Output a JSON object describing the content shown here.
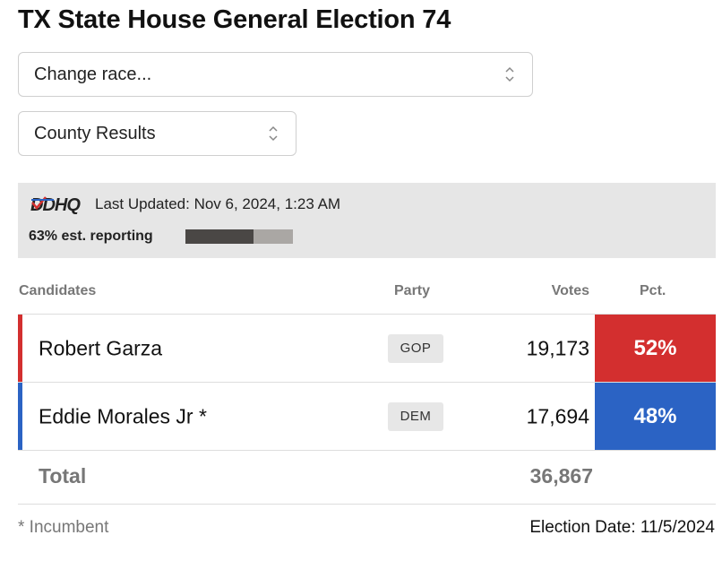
{
  "page": {
    "title": "TX State House General Election 74"
  },
  "controls": {
    "race_select": {
      "value": "Change race..."
    },
    "view_select": {
      "value": "County Results"
    }
  },
  "status": {
    "logo_text": "DDHQ",
    "last_updated": "Last Updated: Nov 6, 2024, 1:23 AM",
    "reporting_label": "63% est. reporting",
    "reporting_fraction": 0.63
  },
  "table": {
    "headers": {
      "candidates": "Candidates",
      "party": "Party",
      "votes": "Votes",
      "pct": "Pct."
    },
    "rows": [
      {
        "name": "Robert Garza",
        "party": "GOP",
        "votes": "19,173",
        "pct": "52%",
        "color": "#d32f2f"
      },
      {
        "name": "Eddie Morales Jr *",
        "party": "DEM",
        "votes": "17,694",
        "pct": "48%",
        "color": "#2b63c4"
      }
    ],
    "total": {
      "label": "Total",
      "votes": "36,867"
    }
  },
  "footer": {
    "incumbent_note": "* Incumbent",
    "election_date": "Election Date: 11/5/2024"
  },
  "colors": {
    "gop": "#d32f2f",
    "dem": "#2b63c4",
    "status_bg": "#e6e6e6"
  }
}
